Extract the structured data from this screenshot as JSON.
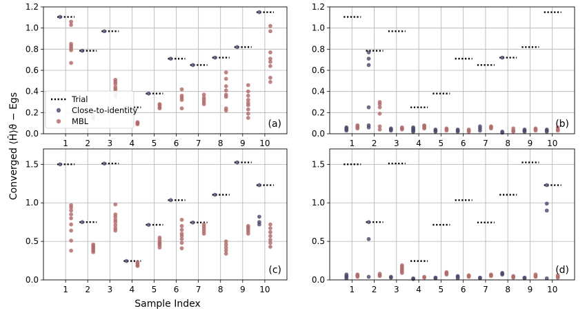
{
  "figure": {
    "ylabel": "Converged ⟨Ĥ⟩ϑ − Egs",
    "xlabel": "Sample Index"
  },
  "legend": {
    "items": [
      {
        "key": "trial",
        "label": "Trial"
      },
      {
        "key": "cti",
        "label": "Close-to-identity"
      },
      {
        "key": "mbl",
        "label": "MBL"
      }
    ]
  },
  "colors": {
    "trial": "#000000",
    "cti": "#4b4c6a",
    "mbl": "#b06a69",
    "grid": "#b0b0b0"
  },
  "chart_data": [
    {
      "panel": "a",
      "type": "scatter",
      "label": "(a)",
      "ylim": [
        0,
        1.2
      ],
      "yticks": [
        "0.0",
        "0.2",
        "0.4",
        "0.6",
        "0.8",
        "1.0",
        "1.2"
      ],
      "xticks": [
        "1",
        "2",
        "3",
        "4",
        "5",
        "6",
        "7",
        "8",
        "9",
        "10"
      ],
      "grid": true,
      "legend": "lower-left",
      "trial": [
        1.105,
        0.785,
        0.97,
        0.25,
        0.38,
        0.71,
        0.65,
        0.72,
        0.82,
        1.15
      ],
      "cti": [
        [
          1.105
        ],
        [
          0.785
        ],
        [
          0.97
        ],
        [
          0.25
        ],
        [
          0.38
        ],
        [
          0.71
        ],
        [
          0.65
        ],
        [
          0.72
        ],
        [
          0.82
        ],
        [
          1.15
        ]
      ],
      "mbl": [
        [
          1.06,
          1.03,
          0.85,
          0.83,
          0.81,
          0.79,
          0.67
        ],
        [
          0.2,
          0.17,
          0.15,
          0.14
        ],
        [
          0.51,
          0.49,
          0.47,
          0.44,
          0.42,
          0.4,
          0.37,
          0.35
        ],
        [
          0.11,
          0.1,
          0.1,
          0.09
        ],
        [
          0.28,
          0.27,
          0.25,
          0.24
        ],
        [
          0.42,
          0.36,
          0.34,
          0.32,
          0.24
        ],
        [
          0.37,
          0.34,
          0.32,
          0.3,
          0.28
        ],
        [
          0.58,
          0.52,
          0.45,
          0.41,
          0.37,
          0.35,
          0.24,
          0.22
        ],
        [
          0.46,
          0.4,
          0.36,
          0.32,
          0.29,
          0.27,
          0.23,
          0.19,
          0.15
        ],
        [
          1.02,
          0.97,
          0.77,
          0.71,
          0.68,
          0.64,
          0.53,
          0.49
        ]
      ]
    },
    {
      "panel": "b",
      "type": "scatter",
      "label": "(b)",
      "ylim": [
        0,
        1.2
      ],
      "yticks": [
        "0.0",
        "0.2",
        "0.4",
        "0.6",
        "0.8",
        "1.0",
        "1.2"
      ],
      "xticks": [
        "1",
        "2",
        "3",
        "4",
        "5",
        "6",
        "7",
        "8",
        "9",
        "10"
      ],
      "grid": true,
      "trial": [
        1.105,
        0.785,
        0.97,
        0.25,
        0.38,
        0.71,
        0.65,
        0.72,
        0.82,
        1.15
      ],
      "cti": [
        [
          0.06,
          0.05,
          0.04,
          0.03
        ],
        [
          0.77,
          0.71,
          0.65,
          0.25,
          0.08,
          0.06
        ],
        [
          0.05,
          0.04,
          0.03
        ],
        [
          0.06,
          0.05,
          0.04,
          0.03,
          0.02
        ],
        [
          0.04,
          0.03,
          0.02
        ],
        [
          0.04,
          0.03,
          0.02
        ],
        [
          0.07,
          0.05,
          0.03
        ],
        [
          0.72,
          0.02,
          0.01
        ],
        [
          0.04,
          0.03,
          0.02
        ],
        [
          0.04,
          0.03,
          0.02
        ]
      ],
      "mbl": [
        [
          0.08,
          0.07,
          0.06,
          0.05
        ],
        [
          0.3,
          0.28,
          0.25,
          0.19,
          0.07,
          0.04
        ],
        [
          0.06,
          0.05,
          0.04
        ],
        [
          0.08,
          0.07,
          0.06,
          0.05
        ],
        [
          0.05,
          0.04,
          0.03
        ],
        [
          0.04,
          0.03,
          0.02
        ],
        [
          0.07,
          0.06,
          0.05
        ],
        [
          0.05,
          0.03,
          0.02
        ],
        [
          0.05,
          0.04,
          0.03
        ],
        [
          0.06,
          0.04,
          0.03
        ]
      ]
    },
    {
      "panel": "c",
      "type": "scatter",
      "label": "(c)",
      "ylim": [
        0,
        1.7
      ],
      "yticks": [
        "0.0",
        "0.5",
        "1.0",
        "1.5"
      ],
      "xticks": [
        "1",
        "2",
        "3",
        "4",
        "5",
        "6",
        "7",
        "8",
        "9",
        "10"
      ],
      "grid": true,
      "trial": [
        1.5,
        0.75,
        1.51,
        0.245,
        0.715,
        1.035,
        0.745,
        1.105,
        1.525,
        1.23
      ],
      "cti": [
        [
          1.5
        ],
        [
          0.75
        ],
        [
          1.51
        ],
        [
          0.245
        ],
        [
          0.715
        ],
        [
          1.035
        ],
        [
          0.745
        ],
        [
          1.105
        ],
        [
          1.525
        ],
        [
          1.23,
          0.82,
          0.75,
          0.72
        ]
      ],
      "mbl": [
        [
          0.97,
          0.94,
          0.9,
          0.85,
          0.8,
          0.72,
          0.64,
          0.51,
          0.38
        ],
        [
          0.46,
          0.44,
          0.42,
          0.4,
          0.38,
          0.36
        ],
        [
          0.98,
          0.85,
          0.82,
          0.78,
          0.75,
          0.71,
          0.67,
          0.64
        ],
        [
          0.23,
          0.21,
          0.19,
          0.18
        ],
        [
          0.55,
          0.52,
          0.49,
          0.47,
          0.45,
          0.42
        ],
        [
          0.78,
          0.7,
          0.65,
          0.6,
          0.57,
          0.53,
          0.48,
          0.41
        ],
        [
          0.72,
          0.69,
          0.66,
          0.63,
          0.6
        ],
        [
          0.5,
          0.46,
          0.42,
          0.38,
          0.34
        ],
        [
          0.7,
          0.68,
          0.66,
          0.63,
          0.6
        ],
        [
          0.72,
          0.67,
          0.62,
          0.57,
          0.52,
          0.48,
          0.43
        ]
      ]
    },
    {
      "panel": "d",
      "type": "scatter",
      "label": "(d)",
      "ylim": [
        0,
        1.7
      ],
      "yticks": [
        "0.0",
        "0.5",
        "1.0",
        "1.5"
      ],
      "xticks": [
        "1",
        "2",
        "3",
        "4",
        "5",
        "6",
        "7",
        "8",
        "9",
        "10"
      ],
      "grid": true,
      "trial": [
        1.5,
        0.75,
        1.51,
        0.245,
        0.715,
        1.035,
        0.745,
        1.105,
        1.525,
        1.23
      ],
      "cti": [
        [
          0.07,
          0.05,
          0.04,
          0.02
        ],
        [
          0.75,
          0.53,
          0.04
        ],
        [
          0.04,
          0.03
        ],
        [
          0.02,
          0.01
        ],
        [
          0.03,
          0.02
        ],
        [
          0.05,
          0.04,
          0.02
        ],
        [
          0.03,
          0.02
        ],
        [
          0.09,
          0.08,
          0.07
        ],
        [
          0.03,
          0.02
        ],
        [
          1.23,
          0.99,
          0.9,
          0.02
        ]
      ],
      "mbl": [
        [
          0.07,
          0.06,
          0.05,
          0.04
        ],
        [
          0.08,
          0.06,
          0.05
        ],
        [
          0.19,
          0.17,
          0.15,
          0.13,
          0.11,
          0.09
        ],
        [
          0.04,
          0.03
        ],
        [
          0.1,
          0.09,
          0.08,
          0.07
        ],
        [
          0.06,
          0.05,
          0.04
        ],
        [
          0.07,
          0.06,
          0.05
        ],
        [
          0.05,
          0.04,
          0.03
        ],
        [
          0.07,
          0.05,
          0.04
        ],
        [
          0.06,
          0.04,
          0.03
        ]
      ]
    }
  ]
}
